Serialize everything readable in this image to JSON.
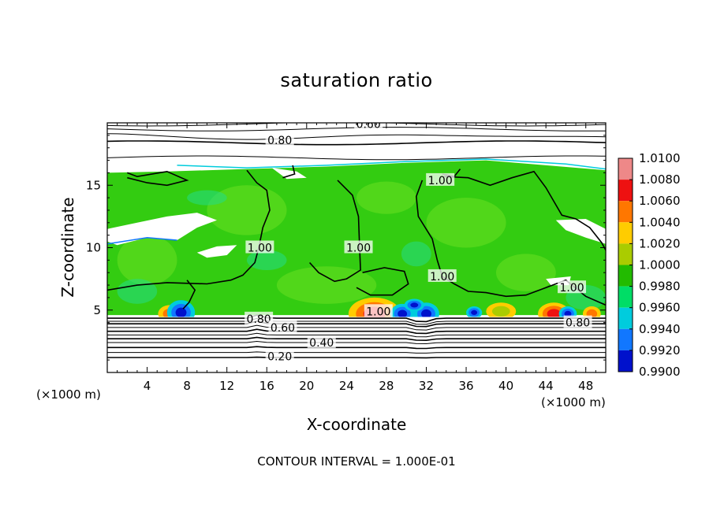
{
  "chart_data": {
    "type": "heatmap",
    "title": "saturation ratio",
    "xlabel": "X-coordinate",
    "ylabel": "Z-coordinate",
    "x_unit": "(×1000 m)",
    "x_unit_right": "(×1000 m)",
    "xlim": [
      0,
      50
    ],
    "ylim": [
      0,
      20
    ],
    "x_ticks": [
      4,
      8,
      12,
      16,
      20,
      24,
      28,
      32,
      36,
      40,
      44,
      48
    ],
    "y_ticks": [
      5,
      10,
      15
    ],
    "colorbar": {
      "min": 0.99,
      "max": 1.01,
      "levels": [
        "1.0100",
        "1.0080",
        "1.0060",
        "1.0040",
        "1.0020",
        "1.0000",
        "0.9980",
        "0.9960",
        "0.9940",
        "0.9920",
        "0.9900"
      ],
      "colors": [
        "#ee8888",
        "#ee1111",
        "#ff7700",
        "#ffcc00",
        "#aacc00",
        "#22bb00",
        "#00dd66",
        "#00ccdd",
        "#1177ff",
        "#0011cc",
        "#5500aa"
      ]
    },
    "contour_labels": [
      {
        "text": "0.60",
        "x": 26.2,
        "y": 19.9
      },
      {
        "text": "0.80",
        "x": 17.3,
        "y": 18.6
      },
      {
        "text": "1.00",
        "x": 33.4,
        "y": 15.4
      },
      {
        "text": "1.00",
        "x": 15.3,
        "y": 10.0
      },
      {
        "text": "1.00",
        "x": 25.2,
        "y": 10.0
      },
      {
        "text": "1.00",
        "x": 33.6,
        "y": 7.7
      },
      {
        "text": "1.00",
        "x": 46.6,
        "y": 6.8
      },
      {
        "text": "1.00",
        "x": 27.2,
        "y": 4.9
      },
      {
        "text": "0.80",
        "x": 15.2,
        "y": 4.3
      },
      {
        "text": "0.60",
        "x": 17.6,
        "y": 3.6
      },
      {
        "text": "0.40",
        "x": 21.5,
        "y": 2.4
      },
      {
        "text": "0.20",
        "x": 17.3,
        "y": 1.3
      },
      {
        "text": "0.80",
        "x": 47.2,
        "y": 4.0
      }
    ],
    "contour_interval": "CONTOUR INTERVAL = 1.000E-01"
  }
}
